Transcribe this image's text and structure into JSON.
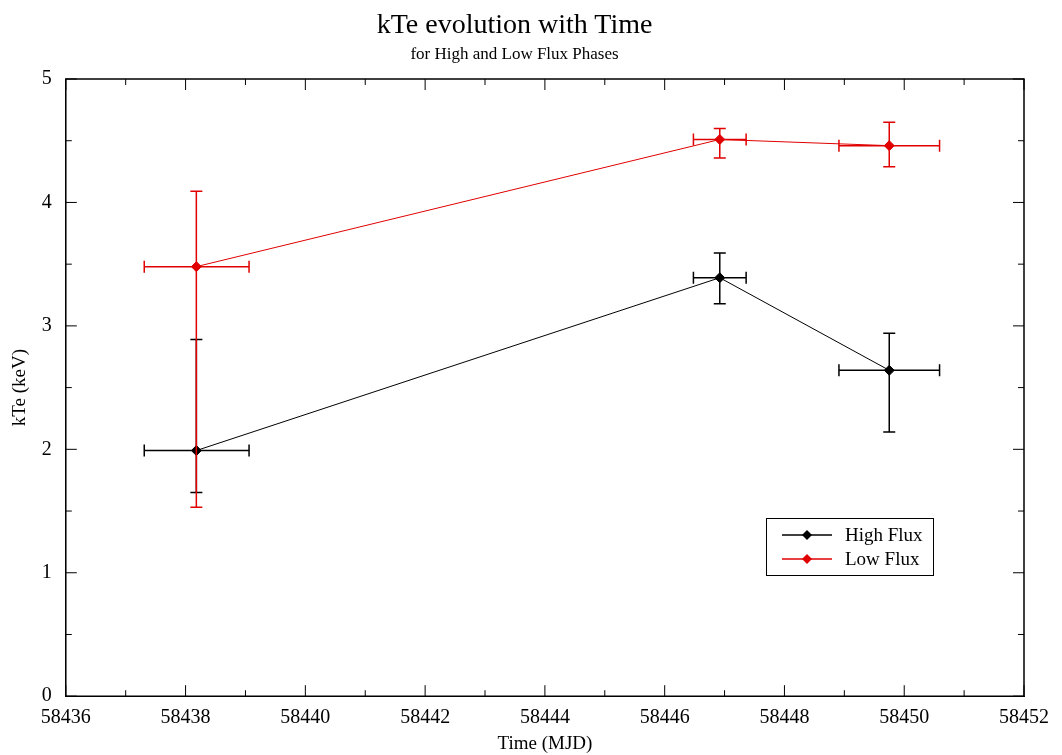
{
  "chart_data": {
    "type": "line",
    "title": "kTe evolution with Time",
    "subtitle": "for High and Low Flux Phases",
    "xlabel": "Time (MJD)",
    "ylabel": "kTe (keV)",
    "x": [
      58438.18,
      58446.92,
      58449.75
    ],
    "series": [
      {
        "name": "High Flux",
        "color": "#000000",
        "values": [
          1.99,
          3.39,
          2.64
        ],
        "errors": [
          [
            1.65,
            2.89
          ],
          [
            3.18,
            3.59
          ],
          [
            2.14,
            2.94
          ]
        ],
        "xerrors": [
          [
            58437.31,
            58439.06
          ],
          [
            58446.48,
            58447.36
          ],
          [
            58448.91,
            58450.59
          ]
        ]
      },
      {
        "name": "Low Flux",
        "color": "#e00000",
        "values": [
          3.48,
          4.51,
          4.46
        ],
        "errors": [
          [
            1.53,
            4.09
          ],
          [
            4.36,
            4.6
          ],
          [
            4.29,
            4.65
          ]
        ],
        "xerrors": [
          [
            58437.31,
            58439.06
          ],
          [
            58446.48,
            58447.36
          ],
          [
            58448.91,
            58450.59
          ]
        ]
      }
    ],
    "xlim": [
      58436,
      58452
    ],
    "xticks": [
      58436,
      {
        "value": 58437,
        "label": null
      },
      58438,
      {
        "value": 58439,
        "label": null
      },
      58440,
      {
        "value": 58441,
        "label": null
      },
      58442,
      {
        "value": 58443,
        "label": null
      },
      58444,
      {
        "value": 58445,
        "label": null
      },
      58446,
      {
        "value": 58447,
        "label": null
      },
      58448,
      {
        "value": 58449,
        "label": null
      },
      58450,
      {
        "value": 58451,
        "label": null
      },
      58452
    ],
    "ylim": [
      0,
      5
    ],
    "yticks": [
      0,
      {
        "value": 0.5,
        "label": null
      },
      1,
      {
        "value": 1.5,
        "label": null
      },
      2,
      {
        "value": 2.5,
        "label": null
      },
      3,
      {
        "value": 3.5,
        "label": null
      },
      4,
      {
        "value": 4.5,
        "label": null
      },
      5
    ],
    "grid": false,
    "legend": "bottom right",
    "marker": "diamond",
    "line_style": "solid"
  }
}
